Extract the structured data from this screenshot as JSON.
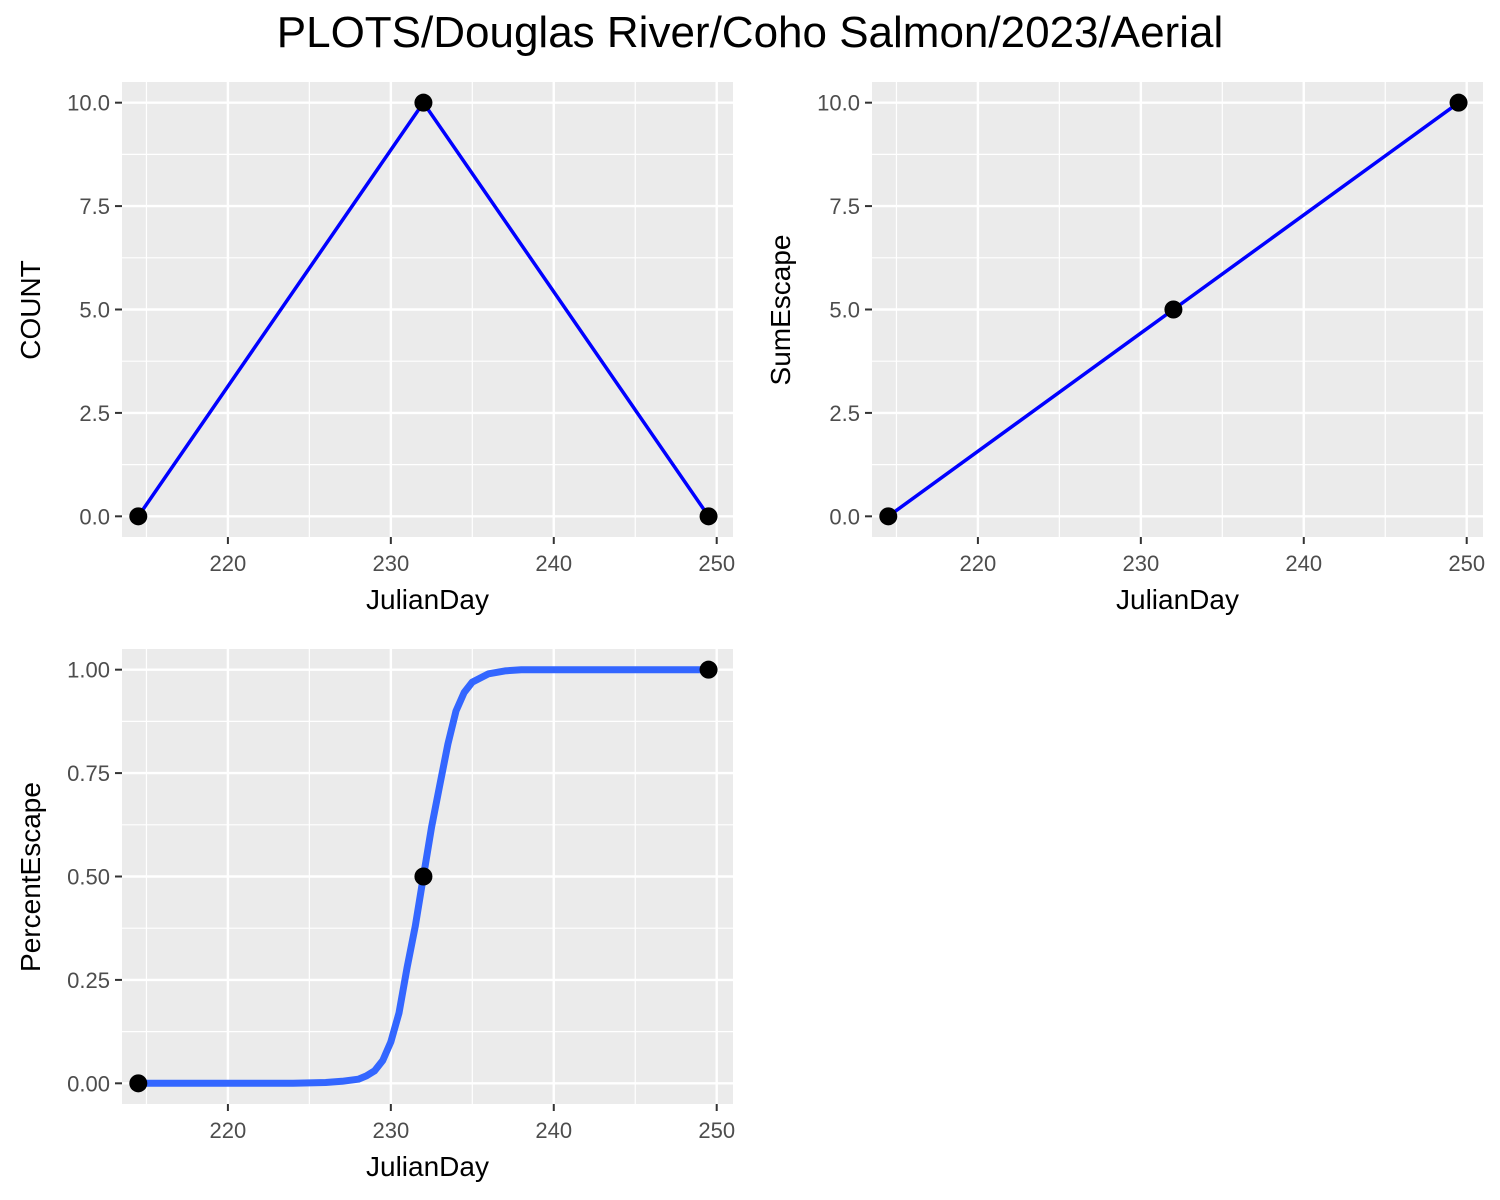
{
  "title": "PLOTS/Douglas River/Coho Salmon/2023/Aerial",
  "colors": {
    "panel_bg": "#ebebeb",
    "grid": "#ffffff",
    "line_blue": "#0000ff",
    "smooth_blue": "#3366ff",
    "point": "#000000",
    "tick_text": "#4d4d4d",
    "tick_mark": "#333333"
  },
  "chart_data": [
    {
      "type": "line",
      "xlabel": "JulianDay",
      "ylabel": "COUNT",
      "xlim": [
        213.5,
        251
      ],
      "ylim": [
        -0.5,
        10.5
      ],
      "x_ticks": [
        220,
        230,
        240,
        250
      ],
      "y_ticks": [
        0,
        2.5,
        5,
        7.5,
        10
      ],
      "y_tick_labels": [
        "0.0",
        "2.5",
        "5.0",
        "7.5",
        "10.0"
      ],
      "grid": true,
      "x": [
        214.5,
        232,
        249.5
      ],
      "y": [
        0,
        10,
        0
      ],
      "line_color": "#0000ff"
    },
    {
      "type": "line",
      "xlabel": "JulianDay",
      "ylabel": "SumEscape",
      "xlim": [
        213.5,
        251
      ],
      "ylim": [
        -0.5,
        10.5
      ],
      "x_ticks": [
        220,
        230,
        240,
        250
      ],
      "y_ticks": [
        0,
        2.5,
        5,
        7.5,
        10
      ],
      "y_tick_labels": [
        "0.0",
        "2.5",
        "5.0",
        "7.5",
        "10.0"
      ],
      "grid": true,
      "x": [
        214.5,
        232,
        249.5
      ],
      "y": [
        0,
        5,
        10
      ],
      "line_color": "#0000ff"
    },
    {
      "type": "line",
      "xlabel": "JulianDay",
      "ylabel": "PercentEscape",
      "xlim": [
        213.5,
        251
      ],
      "ylim": [
        -0.05,
        1.05
      ],
      "x_ticks": [
        220,
        230,
        240,
        250
      ],
      "y_ticks": [
        0,
        0.25,
        0.5,
        0.75,
        1
      ],
      "y_tick_labels": [
        "0.00",
        "0.25",
        "0.50",
        "0.75",
        "1.00"
      ],
      "grid": true,
      "x": [
        214.5,
        232,
        249.5
      ],
      "y": [
        0,
        0.5,
        1
      ],
      "smooth_line": {
        "color": "#3366ff",
        "x": [
          214.5,
          220,
          224,
          226,
          227,
          228,
          228.5,
          229,
          229.5,
          230,
          230.5,
          231,
          231.5,
          232,
          232.5,
          233,
          233.5,
          234,
          234.5,
          235,
          236,
          237,
          238,
          240,
          249.5
        ],
        "y": [
          0,
          0,
          0,
          0.002,
          0.005,
          0.01,
          0.018,
          0.03,
          0.055,
          0.1,
          0.17,
          0.28,
          0.38,
          0.5,
          0.62,
          0.72,
          0.82,
          0.9,
          0.945,
          0.97,
          0.99,
          0.997,
          1,
          1,
          1
        ]
      }
    }
  ]
}
